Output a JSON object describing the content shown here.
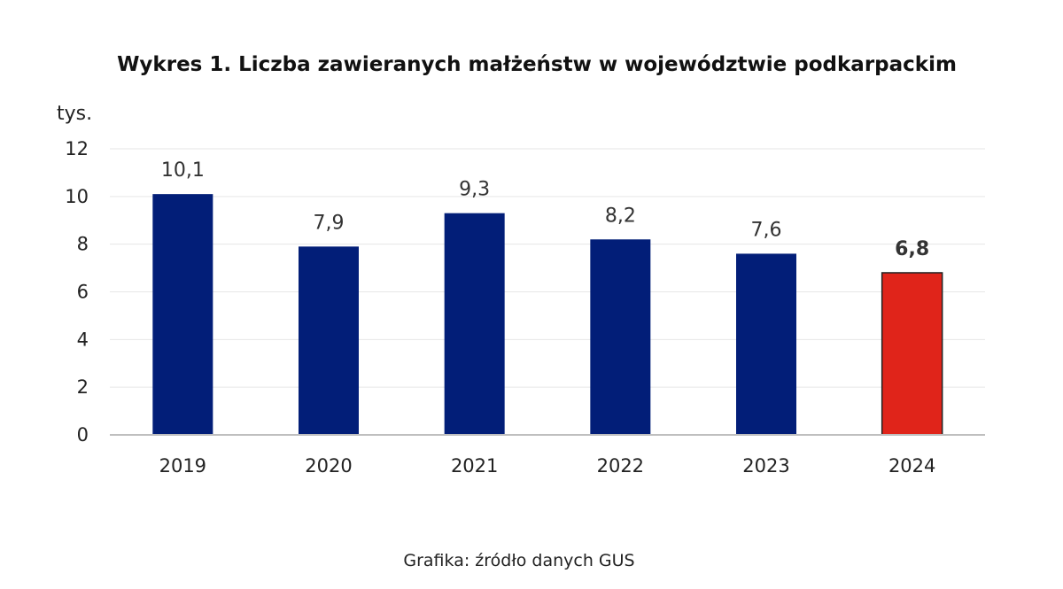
{
  "chart_data": {
    "type": "bar",
    "title": "Wykres 1. Liczba zawieranych małżeństw w województwie podkarpackim",
    "ylabel": "tys.",
    "categories": [
      "2019",
      "2020",
      "2021",
      "2022",
      "2023",
      "2024"
    ],
    "values": [
      10.1,
      7.9,
      9.3,
      8.2,
      7.6,
      6.8
    ],
    "data_labels": [
      "10,1",
      "7,9",
      "9,3",
      "8,2",
      "7,6",
      "6,8"
    ],
    "yticks": [
      "0",
      "2",
      "4",
      "6",
      "8",
      "10",
      "12"
    ],
    "ylim": [
      0,
      12
    ],
    "grid": true,
    "highlight_index": 5,
    "colors": {
      "bar": "#021e78",
      "highlight": "#e0241a",
      "grid": "#e6e6e6",
      "axis": "#bfbfbf"
    }
  },
  "footer": {
    "source": "Grafika: źródło danych GUS"
  }
}
